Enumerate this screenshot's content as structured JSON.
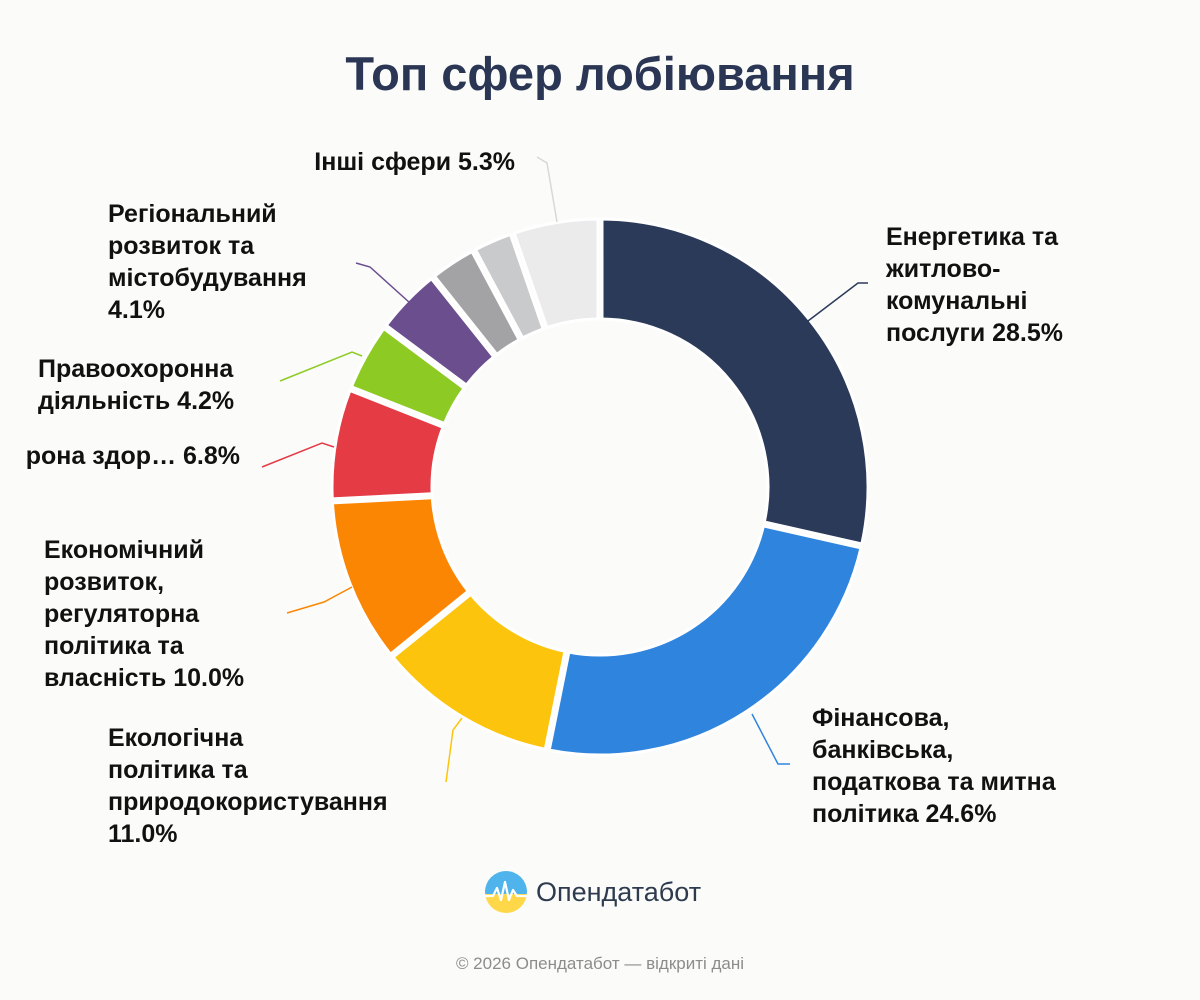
{
  "title": "Топ сфер лобіювання",
  "brand": {
    "name": "Опендатабот",
    "logo_icon": "opendatabot-logo-icon",
    "colors": {
      "blue": "#4fb4ec",
      "yellow": "#ffd84a"
    }
  },
  "footer": "© 2026 Опендатабот — відкриті дані",
  "chart_data": {
    "type": "pie",
    "donut": true,
    "title": "Топ сфер лобіювання",
    "unit": "%",
    "slices": [
      {
        "label_lines": [
          "Енергетика та",
          "житлово-",
          "комунальні",
          "послуги 28.5%"
        ],
        "value": 28.5,
        "color": "#2c3a5a"
      },
      {
        "label_lines": [
          "Фінансова,",
          "банківська,",
          "податкова та митна",
          "політика 24.6%"
        ],
        "value": 24.6,
        "color": "#2f84de"
      },
      {
        "label_lines": [
          "Екологічна",
          "політика та",
          "природокористування",
          "11.0%"
        ],
        "value": 11.0,
        "color": "#fcc40c"
      },
      {
        "label_lines": [
          "Економічний",
          "розвиток,",
          "регуляторна",
          "політика та",
          "власність 10.0%"
        ],
        "value": 10.0,
        "color": "#fb8604"
      },
      {
        "label_lines": [
          "рона здор… 6.8%"
        ],
        "value": 6.8,
        "color": "#e43b45"
      },
      {
        "label_lines": [
          "Правоохоронна",
          "діяльність 4.2%"
        ],
        "value": 4.2,
        "color": "#8dcb24"
      },
      {
        "label_lines": [
          "Регіональний",
          "розвиток та",
          "містобудування",
          "4.1%"
        ],
        "value": 4.1,
        "color": "#6b4e8e"
      },
      {
        "label_lines": [],
        "value": 2.9,
        "color": "#a3a2a4"
      },
      {
        "label_lines": [],
        "value": 2.5,
        "color": "#c9cacb"
      },
      {
        "label_lines": [
          "Інші сфери 5.3%"
        ],
        "value": 5.3,
        "color": "#ebebec"
      }
    ]
  }
}
